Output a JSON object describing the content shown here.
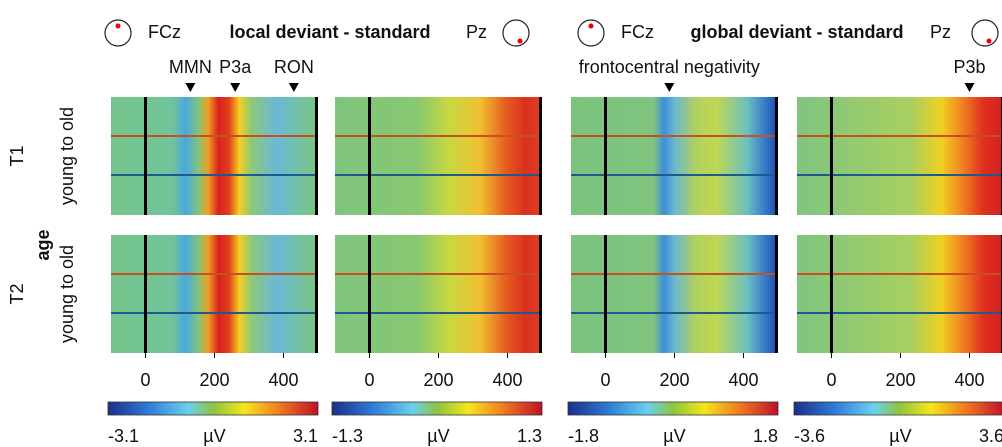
{
  "headers": [
    {
      "left": "FCz",
      "title": "local deviant - standard",
      "right": "Pz"
    },
    {
      "left": "FCz",
      "title": "global deviant - standard",
      "right": "Pz"
    }
  ],
  "ylabel": "age",
  "row_labels": [
    "T1",
    "T2"
  ],
  "row_sublabel": "young to old",
  "chart_data": [
    {
      "type": "heatmap",
      "xlim": [
        -100,
        500
      ],
      "xticks": [
        0,
        200,
        400
      ],
      "clim": [
        -3.1,
        3.1
      ],
      "clabel": "µV",
      "annotations": [
        {
          "text": "MMN",
          "x": 130
        },
        {
          "text": "P3a",
          "x": 260
        },
        {
          "text": "RON",
          "x": 430
        }
      ]
    },
    {
      "type": "heatmap",
      "xlim": [
        -100,
        500
      ],
      "xticks": [
        0,
        200,
        400
      ],
      "clim": [
        -1.3,
        1.3
      ],
      "clabel": "µV",
      "annotations": []
    },
    {
      "type": "heatmap",
      "xlim": [
        -100,
        500
      ],
      "xticks": [
        0,
        200,
        400
      ],
      "clim": [
        -1.8,
        1.8
      ],
      "clabel": "µV",
      "annotations": [
        {
          "text": "frontocentral negativity",
          "x": 185
        }
      ]
    },
    {
      "type": "heatmap",
      "xlim": [
        -100,
        500
      ],
      "xticks": [
        0,
        200,
        400
      ],
      "clim": [
        -3.6,
        3.6
      ],
      "clabel": "µV",
      "annotations": [
        {
          "text": "P3b",
          "x": 400
        }
      ]
    }
  ]
}
